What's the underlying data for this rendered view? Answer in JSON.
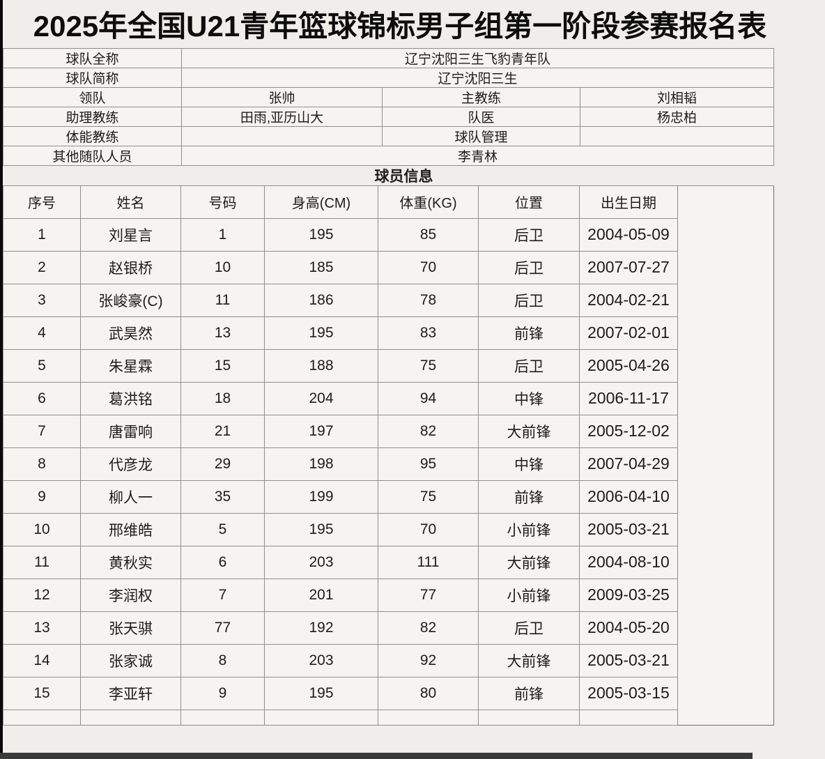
{
  "title": {
    "text": "2025年全国U21青年篮球锦标男子组第一阶段参赛报名表"
  },
  "team_info": {
    "rows": [
      {
        "span": true,
        "label": "球队全称",
        "value": "辽宁沈阳三生飞豹青年队"
      },
      {
        "span": true,
        "label": "球队简称",
        "value": "辽宁沈阳三生"
      },
      {
        "span": false,
        "label": "领队",
        "value": "张帅",
        "label2": "主教练",
        "value2": "刘相韬"
      },
      {
        "span": false,
        "label": "助理教练",
        "value": "田雨,亚历山大",
        "label2": "队医",
        "value2": "杨忠柏"
      },
      {
        "span": false,
        "label": "体能教练",
        "value": "",
        "label2": "球队管理",
        "value2": ""
      },
      {
        "span": true,
        "label": "其他随队人员",
        "value": "李青林"
      }
    ]
  },
  "players": {
    "section_title": "球员信息",
    "headers": [
      "序号",
      "姓名",
      "号码",
      "身高(CM)",
      "体重(KG)",
      "位置",
      "出生日期"
    ],
    "rows": [
      [
        "1",
        "刘星言",
        "1",
        "195",
        "85",
        "后卫",
        "2004-05-09"
      ],
      [
        "2",
        "赵银桥",
        "10",
        "185",
        "70",
        "后卫",
        "2007-07-27"
      ],
      [
        "3",
        "张峻豪(C)",
        "11",
        "186",
        "78",
        "后卫",
        "2004-02-21"
      ],
      [
        "4",
        "武昊然",
        "13",
        "195",
        "83",
        "前锋",
        "2007-02-01"
      ],
      [
        "5",
        "朱星霖",
        "15",
        "188",
        "75",
        "后卫",
        "2005-04-26"
      ],
      [
        "6",
        "葛洪铭",
        "18",
        "204",
        "94",
        "中锋",
        "2006-11-17"
      ],
      [
        "7",
        "唐雷响",
        "21",
        "197",
        "82",
        "大前锋",
        "2005-12-02"
      ],
      [
        "8",
        "代彦龙",
        "29",
        "198",
        "95",
        "中锋",
        "2007-04-29"
      ],
      [
        "9",
        "柳人一",
        "35",
        "199",
        "75",
        "前锋",
        "2006-04-10"
      ],
      [
        "10",
        "邢维皓",
        "5",
        "195",
        "70",
        "小前锋",
        "2005-03-21"
      ],
      [
        "11",
        "黄秋实",
        "6",
        "203",
        "111",
        "大前锋",
        "2004-08-10"
      ],
      [
        "12",
        "李润权",
        "7",
        "201",
        "77",
        "小前锋",
        "2009-03-25"
      ],
      [
        "13",
        "张天骐",
        "77",
        "192",
        "82",
        "后卫",
        "2004-05-20"
      ],
      [
        "14",
        "张家诚",
        "8",
        "203",
        "92",
        "大前锋",
        "2005-03-21"
      ],
      [
        "15",
        "李亚轩",
        "9",
        "195",
        "80",
        "前锋",
        "2005-03-15"
      ]
    ]
  },
  "colors": {
    "page_bg": "#f0eeea",
    "cell_bg": "#f6f4f1",
    "grid_line": "#8f8f8f",
    "text": "#1c1c1c",
    "left_strip": "#0a0a0a",
    "bottom_bar": "#3a3a3a"
  }
}
